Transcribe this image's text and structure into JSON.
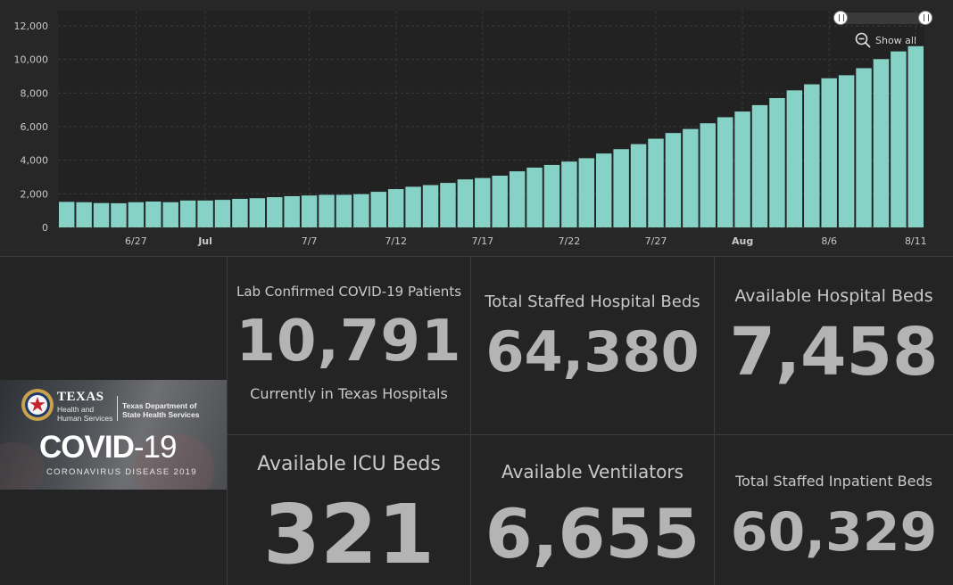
{
  "chart_data": {
    "type": "bar",
    "series_name": "Lab Confirmed COVID-19 Patients Currently in Texas Hospitals",
    "color": "#86d2c6",
    "categories": [
      "6/23",
      "6/24",
      "6/25",
      "6/26",
      "6/27",
      "6/28",
      "6/29",
      "6/30",
      "7/1",
      "7/2",
      "7/3",
      "7/4",
      "7/5",
      "7/6",
      "7/7",
      "7/8",
      "7/9",
      "7/10",
      "7/11",
      "7/12",
      "7/13",
      "7/14",
      "7/15",
      "7/16",
      "7/17",
      "7/18",
      "7/19",
      "7/20",
      "7/21",
      "7/22",
      "7/23",
      "7/24",
      "7/25",
      "7/26",
      "7/27",
      "7/28",
      "7/29",
      "7/30",
      "7/31",
      "8/1",
      "8/2",
      "8/3",
      "8/4",
      "8/5",
      "8/6",
      "8/7",
      "8/8",
      "8/9",
      "8/10",
      "8/11"
    ],
    "values": [
      1520,
      1500,
      1450,
      1440,
      1500,
      1540,
      1500,
      1600,
      1600,
      1640,
      1700,
      1740,
      1800,
      1860,
      1900,
      1940,
      1940,
      1980,
      2120,
      2280,
      2420,
      2520,
      2650,
      2860,
      2940,
      3080,
      3340,
      3560,
      3720,
      3920,
      4120,
      4400,
      4660,
      4960,
      5280,
      5620,
      5860,
      6200,
      6560,
      6900,
      7280,
      7700,
      8160,
      8520,
      8880,
      9060,
      9480,
      10020,
      10480,
      10791
    ],
    "ylim": [
      0,
      12000
    ],
    "y_ticks": [
      "0",
      "2,000",
      "4,000",
      "6,000",
      "8,000",
      "10,000",
      "12,000"
    ],
    "x_tick_labels": [
      {
        "index": 4,
        "label": "6/27",
        "bold": false
      },
      {
        "index": 8,
        "label": "Jul",
        "bold": true
      },
      {
        "index": 14,
        "label": "7/7",
        "bold": false
      },
      {
        "index": 19,
        "label": "7/12",
        "bold": false
      },
      {
        "index": 24,
        "label": "7/17",
        "bold": false
      },
      {
        "index": 29,
        "label": "7/22",
        "bold": false
      },
      {
        "index": 34,
        "label": "7/27",
        "bold": false
      },
      {
        "index": 39,
        "label": "Aug",
        "bold": true
      },
      {
        "index": 44,
        "label": "8/6",
        "bold": false
      },
      {
        "index": 49,
        "label": "8/11",
        "bold": false
      }
    ],
    "show_all_label": "Show all"
  },
  "logo": {
    "texas": "TEXAS",
    "hhs": "Health and Human Services",
    "dshs": "Texas Department of State Health Services",
    "covid": "COVID",
    "covid_num": "-19",
    "subtitle": "CORONAVIRUS DISEASE 2019"
  },
  "tiles": {
    "lab_confirmed": {
      "label": "Lab Confirmed COVID-19 Patients",
      "value": "10,791",
      "sublabel": "Currently in Texas Hospitals"
    },
    "total_staffed": {
      "label": "Total Staffed Hospital Beds",
      "value": "64,380"
    },
    "available_hospital": {
      "label": "Available Hospital Beds",
      "value": "7,458"
    },
    "available_icu": {
      "label": "Available ICU Beds",
      "value": "321"
    },
    "available_ventilators": {
      "label": "Available Ventilators",
      "value": "6,655"
    },
    "total_inpatient": {
      "label": "Total Staffed Inpatient Beds",
      "value": "60,329"
    }
  }
}
